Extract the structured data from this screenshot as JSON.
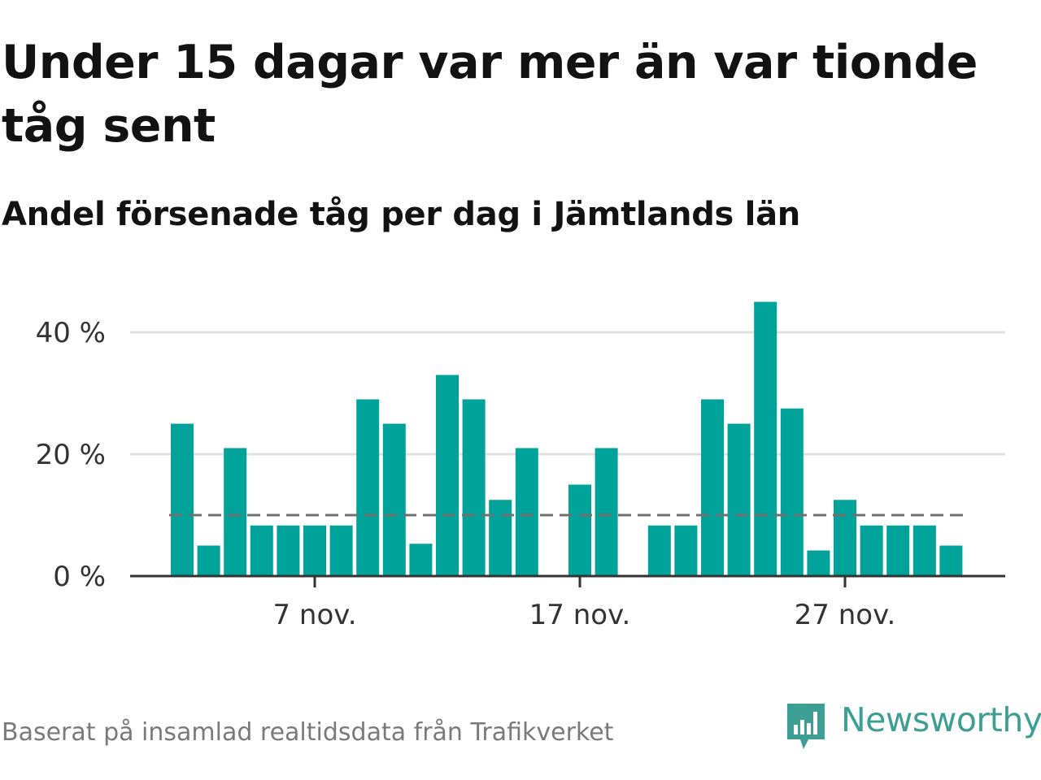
{
  "title": "Under 15 dagar var mer än var tionde tåg sent",
  "subtitle": "Andel försenade tåg per dag i Jämtlands län",
  "footer": "Baserat på insamlad realtidsdata från Trafikverket",
  "brand": "Newsworthy",
  "colors": {
    "bar": "#00a39a",
    "reference": "#707070",
    "grid": "#e0e0e0",
    "axis": "#333333",
    "brand": "#3d9f94"
  },
  "chart_data": {
    "type": "bar",
    "x_start": "2 nov.",
    "x_ticks": [
      "7 nov.",
      "17 nov.",
      "27 nov."
    ],
    "y_ticks": [
      "0 %",
      "20 %",
      "40 %"
    ],
    "ylim": [
      0,
      48
    ],
    "grid": true,
    "reference_line": 10,
    "values": [
      25,
      5,
      21,
      8.3,
      8.3,
      8.3,
      8.3,
      29,
      25,
      5.3,
      33,
      29,
      12.5,
      21,
      0,
      15,
      21,
      0,
      8.3,
      8.3,
      29,
      25,
      45,
      27.5,
      4.2,
      12.5,
      8.3,
      8.3,
      8.3,
      5
    ]
  }
}
